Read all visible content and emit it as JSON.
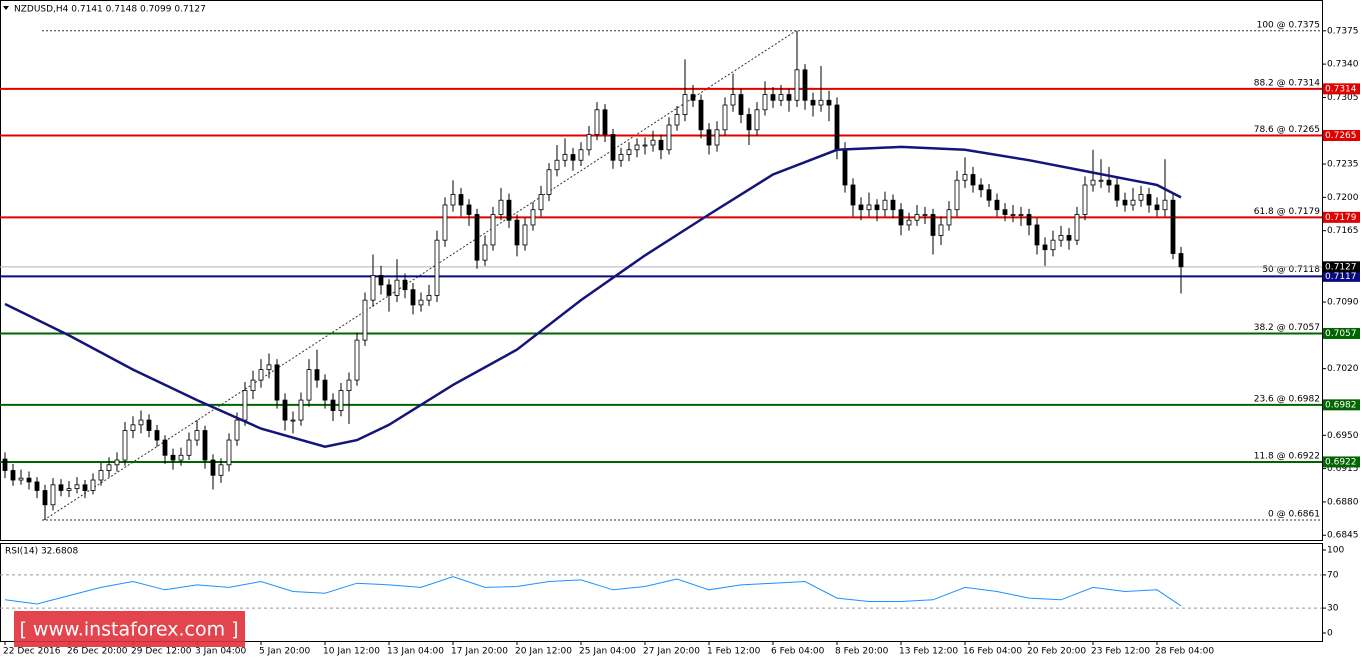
{
  "chart_data": {
    "type": "candlestick",
    "title": "NZDUSD,H4  0.7141 0.7148 0.7099 0.7127",
    "candles": [
      [
        0.6925,
        0.6932,
        0.6905,
        0.6913
      ],
      [
        0.6913,
        0.692,
        0.6897,
        0.6903
      ],
      [
        0.6903,
        0.6914,
        0.6898,
        0.6905
      ],
      [
        0.6905,
        0.6912,
        0.6893,
        0.6901
      ],
      [
        0.6901,
        0.6906,
        0.6884,
        0.6892
      ],
      [
        0.6892,
        0.6898,
        0.6861,
        0.6877
      ],
      [
        0.6877,
        0.6905,
        0.6871,
        0.6898
      ],
      [
        0.6898,
        0.6904,
        0.6886,
        0.6892
      ],
      [
        0.6892,
        0.6902,
        0.6885,
        0.6894
      ],
      [
        0.6894,
        0.6906,
        0.6889,
        0.6898
      ],
      [
        0.6898,
        0.6903,
        0.6884,
        0.6892
      ],
      [
        0.6892,
        0.691,
        0.6888,
        0.6903
      ],
      [
        0.6903,
        0.6921,
        0.6897,
        0.6913
      ],
      [
        0.6913,
        0.6927,
        0.6906,
        0.6919
      ],
      [
        0.6919,
        0.6932,
        0.6912,
        0.6924
      ],
      [
        0.6924,
        0.6964,
        0.6918,
        0.6955
      ],
      [
        0.6955,
        0.697,
        0.6947,
        0.6961
      ],
      [
        0.6961,
        0.6976,
        0.6952,
        0.6966
      ],
      [
        0.6966,
        0.6972,
        0.6948,
        0.6955
      ],
      [
        0.6955,
        0.6961,
        0.6938,
        0.6945
      ],
      [
        0.6945,
        0.695,
        0.692,
        0.6929
      ],
      [
        0.6929,
        0.6936,
        0.6914,
        0.6924
      ],
      [
        0.6924,
        0.6937,
        0.6918,
        0.6929
      ],
      [
        0.6929,
        0.6953,
        0.6924,
        0.6945
      ],
      [
        0.6945,
        0.6966,
        0.6939,
        0.6955
      ],
      [
        0.6955,
        0.696,
        0.6915,
        0.6924
      ],
      [
        0.6924,
        0.693,
        0.6893,
        0.6908
      ],
      [
        0.6908,
        0.6926,
        0.69,
        0.6919
      ],
      [
        0.6919,
        0.6952,
        0.6912,
        0.6945
      ],
      [
        0.6945,
        0.6974,
        0.6939,
        0.6966
      ],
      [
        0.6966,
        0.7006,
        0.696,
        0.6997
      ],
      [
        0.6997,
        0.7018,
        0.6988,
        0.7008
      ],
      [
        0.7008,
        0.703,
        0.7,
        0.7019
      ],
      [
        0.7019,
        0.7036,
        0.701,
        0.7024
      ],
      [
        0.7024,
        0.703,
        0.6978,
        0.6987
      ],
      [
        0.6987,
        0.6994,
        0.6955,
        0.6966
      ],
      [
        0.6966,
        0.6975,
        0.6952,
        0.6966
      ],
      [
        0.6966,
        0.6995,
        0.696,
        0.6987
      ],
      [
        0.6987,
        0.703,
        0.698,
        0.7019
      ],
      [
        0.7019,
        0.704,
        0.7,
        0.7008
      ],
      [
        0.7008,
        0.7014,
        0.6978,
        0.6987
      ],
      [
        0.6987,
        0.6994,
        0.6965,
        0.6976
      ],
      [
        0.6976,
        0.7005,
        0.697,
        0.6997
      ],
      [
        0.6997,
        0.7016,
        0.6962,
        0.7008
      ],
      [
        0.7008,
        0.7058,
        0.7002,
        0.705
      ],
      [
        0.705,
        0.71,
        0.7044,
        0.7092
      ],
      [
        0.7092,
        0.714,
        0.7085,
        0.7118
      ],
      [
        0.7118,
        0.7128,
        0.7098,
        0.7108
      ],
      [
        0.7108,
        0.7114,
        0.708,
        0.7097
      ],
      [
        0.7097,
        0.7135,
        0.709,
        0.7113
      ],
      [
        0.7113,
        0.712,
        0.7094,
        0.7103
      ],
      [
        0.7103,
        0.711,
        0.7077,
        0.7087
      ],
      [
        0.7087,
        0.71,
        0.708,
        0.7092
      ],
      [
        0.7092,
        0.7108,
        0.7086,
        0.7097
      ],
      [
        0.7097,
        0.7165,
        0.709,
        0.7155
      ],
      [
        0.7155,
        0.72,
        0.7148,
        0.7192
      ],
      [
        0.7192,
        0.7218,
        0.7185,
        0.7203
      ],
      [
        0.7203,
        0.721,
        0.718,
        0.7192
      ],
      [
        0.7192,
        0.7198,
        0.717,
        0.7182
      ],
      [
        0.7182,
        0.7188,
        0.7125,
        0.7134
      ],
      [
        0.7134,
        0.716,
        0.7128,
        0.715
      ],
      [
        0.715,
        0.719,
        0.7144,
        0.7182
      ],
      [
        0.7182,
        0.721,
        0.7176,
        0.7197
      ],
      [
        0.7197,
        0.7204,
        0.7168,
        0.7176
      ],
      [
        0.7176,
        0.7182,
        0.7138,
        0.715
      ],
      [
        0.715,
        0.7178,
        0.7144,
        0.7171
      ],
      [
        0.7171,
        0.7195,
        0.7165,
        0.7187
      ],
      [
        0.7187,
        0.7212,
        0.718,
        0.7203
      ],
      [
        0.7203,
        0.7236,
        0.7196,
        0.7229
      ],
      [
        0.7229,
        0.7255,
        0.7222,
        0.7239
      ],
      [
        0.7239,
        0.7262,
        0.7232,
        0.7245
      ],
      [
        0.7245,
        0.7252,
        0.7228,
        0.7239
      ],
      [
        0.7239,
        0.7258,
        0.7233,
        0.725
      ],
      [
        0.725,
        0.7275,
        0.7244,
        0.7266
      ],
      [
        0.7266,
        0.73,
        0.726,
        0.7292
      ],
      [
        0.7292,
        0.7298,
        0.7258,
        0.7266
      ],
      [
        0.7266,
        0.7272,
        0.723,
        0.7239
      ],
      [
        0.7239,
        0.7252,
        0.7232,
        0.7245
      ],
      [
        0.7245,
        0.7258,
        0.7238,
        0.725
      ],
      [
        0.725,
        0.7262,
        0.7242,
        0.7255
      ],
      [
        0.7255,
        0.7263,
        0.7245,
        0.7255
      ],
      [
        0.7255,
        0.727,
        0.7248,
        0.726
      ],
      [
        0.726,
        0.7266,
        0.724,
        0.725
      ],
      [
        0.725,
        0.7284,
        0.7245,
        0.7276
      ],
      [
        0.7276,
        0.7296,
        0.727,
        0.7287
      ],
      [
        0.7287,
        0.7345,
        0.728,
        0.7308
      ],
      [
        0.7308,
        0.7318,
        0.7295,
        0.7302
      ],
      [
        0.7302,
        0.7308,
        0.7262,
        0.7271
      ],
      [
        0.7271,
        0.7278,
        0.7245,
        0.7255
      ],
      [
        0.7255,
        0.728,
        0.7248,
        0.7271
      ],
      [
        0.7271,
        0.7305,
        0.7265,
        0.7297
      ],
      [
        0.7297,
        0.733,
        0.729,
        0.7308
      ],
      [
        0.7308,
        0.7314,
        0.7278,
        0.7287
      ],
      [
        0.7287,
        0.7294,
        0.7255,
        0.7271
      ],
      [
        0.7271,
        0.73,
        0.7265,
        0.7292
      ],
      [
        0.7292,
        0.7322,
        0.7286,
        0.7308
      ],
      [
        0.7308,
        0.7316,
        0.7294,
        0.7302
      ],
      [
        0.7302,
        0.7318,
        0.7296,
        0.7308
      ],
      [
        0.7308,
        0.7314,
        0.729,
        0.7302
      ],
      [
        0.7302,
        0.7375,
        0.7295,
        0.7334
      ],
      [
        0.7334,
        0.734,
        0.7292,
        0.7302
      ],
      [
        0.7302,
        0.731,
        0.7285,
        0.7297
      ],
      [
        0.7297,
        0.7338,
        0.729,
        0.7302
      ],
      [
        0.7302,
        0.7312,
        0.728,
        0.7297
      ],
      [
        0.7297,
        0.7305,
        0.724,
        0.725
      ],
      [
        0.725,
        0.7258,
        0.7205,
        0.7213
      ],
      [
        0.7213,
        0.722,
        0.718,
        0.7192
      ],
      [
        0.7192,
        0.72,
        0.7176,
        0.7187
      ],
      [
        0.7187,
        0.7205,
        0.718,
        0.7192
      ],
      [
        0.7192,
        0.7198,
        0.7175,
        0.7187
      ],
      [
        0.7187,
        0.7206,
        0.718,
        0.7197
      ],
      [
        0.7197,
        0.7203,
        0.7178,
        0.7187
      ],
      [
        0.7187,
        0.7194,
        0.716,
        0.7171
      ],
      [
        0.7171,
        0.7184,
        0.7165,
        0.7176
      ],
      [
        0.7176,
        0.7192,
        0.717,
        0.7182
      ],
      [
        0.7182,
        0.719,
        0.7172,
        0.7182
      ],
      [
        0.7182,
        0.7188,
        0.714,
        0.716
      ],
      [
        0.716,
        0.718,
        0.715,
        0.7171
      ],
      [
        0.7171,
        0.7196,
        0.7165,
        0.7187
      ],
      [
        0.7187,
        0.7228,
        0.718,
        0.7218
      ],
      [
        0.7218,
        0.7242,
        0.721,
        0.7224
      ],
      [
        0.7224,
        0.7232,
        0.7205,
        0.7213
      ],
      [
        0.7213,
        0.722,
        0.72,
        0.7208
      ],
      [
        0.7208,
        0.7214,
        0.719,
        0.7197
      ],
      [
        0.7197,
        0.7204,
        0.718,
        0.7187
      ],
      [
        0.7187,
        0.7194,
        0.7175,
        0.7182
      ],
      [
        0.7182,
        0.7192,
        0.7174,
        0.7182
      ],
      [
        0.7182,
        0.719,
        0.717,
        0.7182
      ],
      [
        0.7182,
        0.7188,
        0.716,
        0.7171
      ],
      [
        0.7171,
        0.7178,
        0.714,
        0.715
      ],
      [
        0.715,
        0.7158,
        0.7128,
        0.7145
      ],
      [
        0.7145,
        0.7165,
        0.7138,
        0.7155
      ],
      [
        0.7155,
        0.717,
        0.7148,
        0.716
      ],
      [
        0.716,
        0.7168,
        0.7145,
        0.7155
      ],
      [
        0.7155,
        0.719,
        0.715,
        0.7182
      ],
      [
        0.7182,
        0.7222,
        0.7176,
        0.7213
      ],
      [
        0.7213,
        0.725,
        0.7206,
        0.7218
      ],
      [
        0.7218,
        0.724,
        0.721,
        0.7218
      ],
      [
        0.7218,
        0.7232,
        0.7205,
        0.7213
      ],
      [
        0.7213,
        0.7222,
        0.719,
        0.7197
      ],
      [
        0.7197,
        0.7205,
        0.7185,
        0.7192
      ],
      [
        0.7192,
        0.721,
        0.7186,
        0.7197
      ],
      [
        0.7197,
        0.7212,
        0.719,
        0.7203
      ],
      [
        0.7203,
        0.721,
        0.7184,
        0.7192
      ],
      [
        0.7192,
        0.72,
        0.718,
        0.7187
      ],
      [
        0.7187,
        0.724,
        0.718,
        0.7197
      ],
      [
        0.7197,
        0.7205,
        0.7135,
        0.7141
      ],
      [
        0.7141,
        0.7148,
        0.7099,
        0.7127
      ]
    ],
    "up_color": "#ffffff",
    "down_color": "#000000",
    "wick_color": "#000000",
    "xlim": [
      -0.625,
      164.625
    ],
    "ylim": [
      0.684,
      0.74
    ],
    "yticks": [
      0.7375,
      {
        "value": 0.734,
        "label": "0.7340"
      },
      0.7305,
      0.7235,
      {
        "value": 0.72,
        "label": "0.7200"
      },
      0.7165,
      {
        "value": 0.709,
        "label": "0.7090"
      },
      {
        "value": 0.702,
        "label": "0.7020"
      },
      {
        "value": 0.695,
        "label": "0.6950"
      },
      0.6915,
      {
        "value": 0.688,
        "label": "0.6880"
      },
      0.6845
    ],
    "xticks": [
      {
        "value": 0,
        "label": "22 Dec 2016"
      },
      {
        "value": 8,
        "label": "26 Dec 20:00"
      },
      {
        "value": 16,
        "label": "29 Dec 12:00"
      },
      {
        "value": 24,
        "label": "3 Jan 04:00"
      },
      {
        "value": 32,
        "label": "5 Jan 20:00"
      },
      {
        "value": 40,
        "label": "10 Jan 12:00"
      },
      {
        "value": 48,
        "label": "13 Jan 04:00"
      },
      {
        "value": 56,
        "label": "17 Jan 20:00"
      },
      {
        "value": 64,
        "label": "20 Jan 12:00"
      },
      {
        "value": 72,
        "label": "25 Jan 04:00"
      },
      {
        "value": 80,
        "label": "27 Jan 20:00"
      },
      {
        "value": 88,
        "label": "1 Feb 12:00"
      },
      {
        "value": 96,
        "label": "6 Feb 04:00"
      },
      {
        "value": 104,
        "label": "8 Feb 20:00"
      },
      {
        "value": 112,
        "label": "13 Feb 12:00"
      },
      {
        "value": 120,
        "label": "16 Feb 04:00"
      },
      {
        "value": 128,
        "label": "20 Feb 20:00"
      },
      {
        "value": 136,
        "label": "23 Feb 12:00"
      },
      {
        "value": 144,
        "label": "28 Feb 04:00"
      }
    ],
    "ma": {
      "color": "#14147a",
      "x": [
        0,
        8,
        16,
        24,
        32,
        40,
        44,
        48,
        56,
        64,
        72,
        80,
        88,
        96,
        104,
        112,
        120,
        128,
        136,
        144,
        147
      ],
      "values": [
        0.7088,
        0.7055,
        0.7019,
        0.6987,
        0.6957,
        0.6938,
        0.6945,
        0.6961,
        0.7003,
        0.704,
        0.7092,
        0.7139,
        0.7182,
        0.7224,
        0.725,
        0.7253,
        0.725,
        0.7239,
        0.7226,
        0.7213,
        0.72
      ]
    },
    "levels": [
      {
        "value": 0.7314,
        "color": "#e00000"
      },
      {
        "value": 0.7265,
        "color": "#e00000"
      },
      {
        "value": 0.7179,
        "color": "#e00000"
      },
      {
        "value": 0.7117,
        "color": "#0a0a80"
      },
      {
        "value": 0.7057,
        "color": "#006400"
      },
      {
        "value": 0.6982,
        "color": "#006400"
      },
      {
        "value": 0.6922,
        "color": "#006400"
      }
    ],
    "fib_labels": [
      {
        "label": "100 @ 0.7375",
        "value": 0.7375,
        "line": "dotted"
      },
      {
        "label": "88.2 @ 0.7314",
        "value": 0.7314
      },
      {
        "label": "78.6 @ 0.7265",
        "value": 0.7265
      },
      {
        "label": "61.8 @ 0.7179",
        "value": 0.7179
      },
      {
        "label": "50 @ 0.7118",
        "value": 0.7118
      },
      {
        "label": "38.2 @ 0.7057",
        "value": 0.7057
      },
      {
        "label": "23.6 @ 0.6982",
        "value": 0.6982
      },
      {
        "label": "11.8 @ 0.6922",
        "value": 0.6922
      },
      {
        "label": "0 @ 0.6861",
        "value": 0.6861,
        "line": "dotted"
      }
    ],
    "bid": {
      "value": 0.7127,
      "color": "#000000"
    },
    "rsi": {
      "label": "RSI(14) 32.6808",
      "color": "#1e90ff",
      "ylim": [
        0,
        100
      ],
      "yticks": [
        100,
        70,
        30,
        0
      ],
      "levels": [
        70,
        30
      ],
      "x": [
        0,
        4,
        8,
        12,
        16,
        20,
        24,
        28,
        32,
        36,
        40,
        44,
        48,
        52,
        56,
        60,
        64,
        68,
        72,
        76,
        80,
        84,
        88,
        92,
        96,
        100,
        104,
        108,
        112,
        116,
        120,
        124,
        128,
        132,
        136,
        140,
        144,
        147
      ],
      "values": [
        40,
        35,
        45,
        55,
        62,
        52,
        58,
        55,
        62,
        50,
        48,
        60,
        58,
        55,
        68,
        55,
        56,
        62,
        64,
        52,
        56,
        65,
        52,
        58,
        60,
        62,
        42,
        38,
        38,
        40,
        55,
        50,
        42,
        40,
        55,
        50,
        52,
        32.6808
      ]
    },
    "watermark": "[ www.instaforex.com ]"
  }
}
